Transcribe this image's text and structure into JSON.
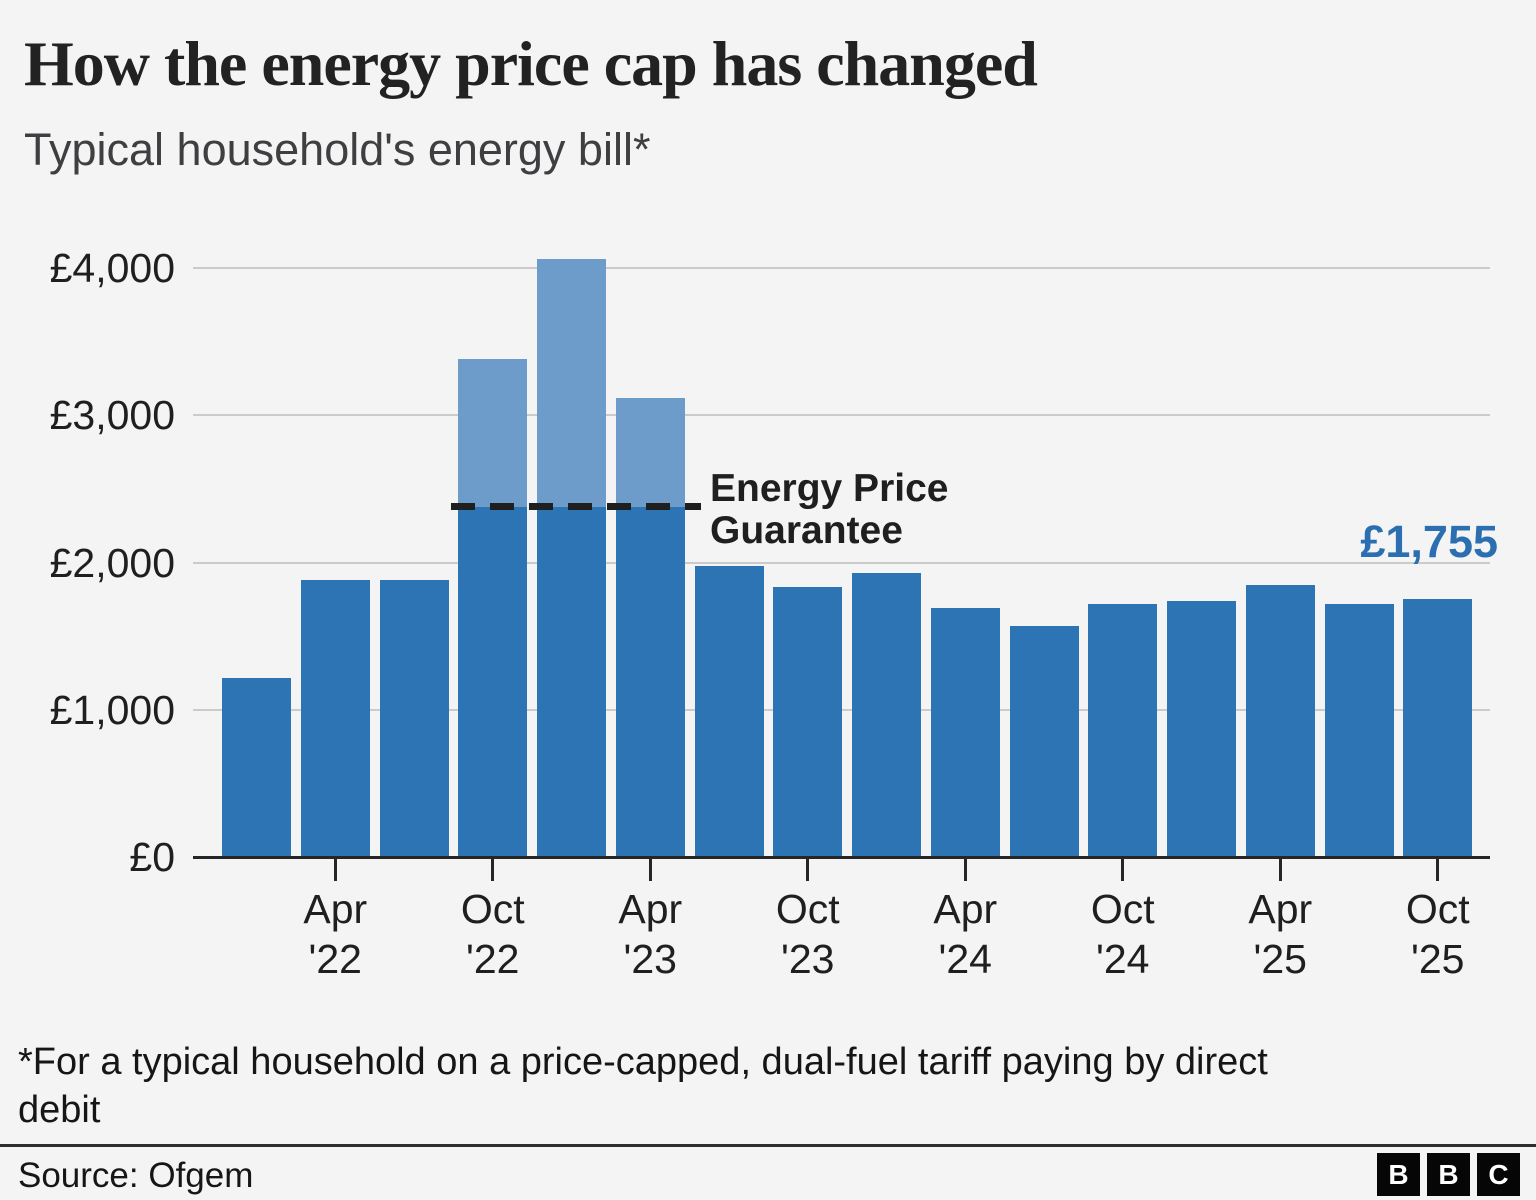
{
  "header": {
    "title": "How the energy price cap has changed",
    "subtitle": "Typical household's energy bill*"
  },
  "chart_data": {
    "type": "bar",
    "title": "How the energy price cap has changed",
    "subtitle": "Typical household's energy bill*",
    "currency": "GBP",
    "ylim": [
      0,
      4000
    ],
    "grid": true,
    "legend": false,
    "yticks": [
      {
        "value": 4000,
        "label": "£4,000"
      },
      {
        "value": 3000,
        "label": "£3,000"
      },
      {
        "value": 2000,
        "label": "£2,000"
      },
      {
        "value": 1000,
        "label": "£1,000"
      },
      {
        "value": 0,
        "label": "£0"
      }
    ],
    "bars": [
      {
        "x": "Jan '22",
        "value": 1216
      },
      {
        "x": "Apr '22",
        "value": 1880,
        "axis_tick": true,
        "tick_label": "Apr '22"
      },
      {
        "x": "Jul '22",
        "value": 1880
      },
      {
        "x": "Oct '22",
        "value": 3381,
        "capped_at": 2380,
        "axis_tick": true,
        "tick_label": "Oct '22"
      },
      {
        "x": "Jan '23",
        "value": 4059,
        "capped_at": 2380
      },
      {
        "x": "Apr '23",
        "value": 3116,
        "capped_at": 2380,
        "axis_tick": true,
        "tick_label": "Apr '23"
      },
      {
        "x": "Jul '23",
        "value": 1976
      },
      {
        "x": "Oct '23",
        "value": 1834,
        "axis_tick": true,
        "tick_label": "Oct '23"
      },
      {
        "x": "Jan '24",
        "value": 1928
      },
      {
        "x": "Apr '24",
        "value": 1690,
        "axis_tick": true,
        "tick_label": "Apr '24"
      },
      {
        "x": "Jul '24",
        "value": 1568
      },
      {
        "x": "Oct '24",
        "value": 1717,
        "axis_tick": true,
        "tick_label": "Oct '24"
      },
      {
        "x": "Jan '25",
        "value": 1738
      },
      {
        "x": "Apr '25",
        "value": 1849,
        "axis_tick": true,
        "tick_label": "Apr '25"
      },
      {
        "x": "Jul '25",
        "value": 1720
      },
      {
        "x": "Oct '25",
        "value": 1755,
        "axis_tick": true,
        "tick_label": "Oct '25"
      }
    ],
    "annotation": {
      "lines": [
        "Energy Price",
        "Guarantee"
      ],
      "value": 2380
    },
    "value_callout": "£1,755",
    "colors": {
      "bar": "#2d74b5",
      "bar_capped_excess": "#6d9cca",
      "callout_text": "#2c6fb0",
      "gridline": "#cbcbcb",
      "axis": "#262626",
      "background": "#f4f4f5"
    }
  },
  "footer": {
    "footnote": "*For a typical household on a price-capped, dual-fuel tariff paying by direct\ndebit",
    "source": "Source: Ofgem",
    "logo_letters": [
      "B",
      "B",
      "C"
    ]
  }
}
